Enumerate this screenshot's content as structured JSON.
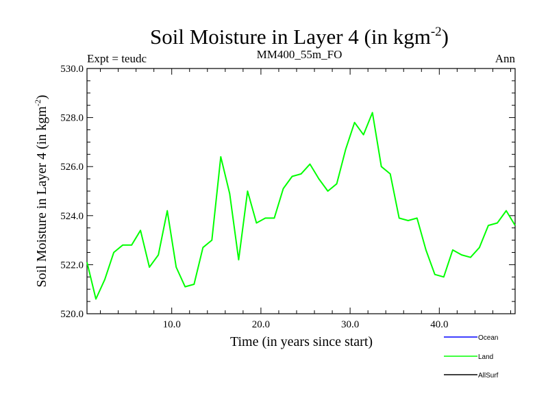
{
  "chart_data": {
    "type": "line",
    "title": "Soil Moisture in Layer 4 (in kgm",
    "title_sup": "-2",
    "title_end": ")",
    "left_label": "Expt = teudc",
    "subtitle": "MM400_55m_FO",
    "right_label": "Ann",
    "xlabel": "Time (in years since start)",
    "ylabel": "Soil Moisture in Layer 4 (in kgm",
    "ylabel_sup": "-2",
    "ylabel_end": ")",
    "xlim": [
      0.5,
      48.5
    ],
    "ylim": [
      520,
      530
    ],
    "x_ticks": [
      10,
      20,
      30,
      40
    ],
    "x_tick_labels": [
      "10.0",
      "20.0",
      "30.0",
      "40.0"
    ],
    "y_ticks": [
      520,
      522,
      524,
      526,
      528,
      530
    ],
    "y_tick_labels": [
      "520.0",
      "522.0",
      "524.0",
      "526.0",
      "528.0",
      "530.0"
    ],
    "legend_placement": "bottom-right",
    "series": [
      {
        "name": "Ocean",
        "color": "#0000ff",
        "x": [],
        "y": []
      },
      {
        "name": "Land",
        "color": "#00ff00",
        "x": [
          0.5,
          1.5,
          2.5,
          3.5,
          4.5,
          5.5,
          6.5,
          7.5,
          8.5,
          9.5,
          10.5,
          11.5,
          12.5,
          13.5,
          14.5,
          15.5,
          16.5,
          17.5,
          18.5,
          19.5,
          20.5,
          21.5,
          22.5,
          23.5,
          24.5,
          25.5,
          26.5,
          27.5,
          28.5,
          29.5,
          30.5,
          31.5,
          32.5,
          33.5,
          34.5,
          35.5,
          36.5,
          37.5,
          38.5,
          39.5,
          40.5,
          41.5,
          42.5,
          43.5,
          44.5,
          45.5,
          46.5,
          47.5,
          48.5
        ],
        "y": [
          522.1,
          520.6,
          521.4,
          522.5,
          522.8,
          522.8,
          523.4,
          521.9,
          522.4,
          524.2,
          521.9,
          521.1,
          521.2,
          522.7,
          523.0,
          526.4,
          524.9,
          522.2,
          525.0,
          523.7,
          523.9,
          523.9,
          525.1,
          525.6,
          525.7,
          526.1,
          525.5,
          525.0,
          525.3,
          526.7,
          527.8,
          527.3,
          528.2,
          526.0,
          525.7,
          523.9,
          523.8,
          523.9,
          522.6,
          521.6,
          521.5,
          522.6,
          522.4,
          522.3,
          522.7,
          523.6,
          523.7,
          524.2,
          523.6
        ]
      },
      {
        "name": "AllSurf",
        "color": "#000000",
        "x": [],
        "y": []
      }
    ]
  }
}
